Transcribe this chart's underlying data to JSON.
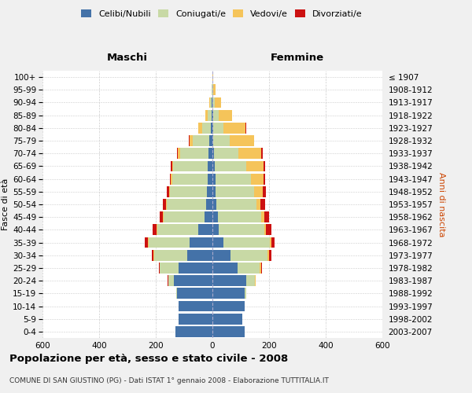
{
  "age_groups": [
    "0-4",
    "5-9",
    "10-14",
    "15-19",
    "20-24",
    "25-29",
    "30-34",
    "35-39",
    "40-44",
    "45-49",
    "50-54",
    "55-59",
    "60-64",
    "65-69",
    "70-74",
    "75-79",
    "80-84",
    "85-89",
    "90-94",
    "95-99",
    "100+"
  ],
  "birth_years": [
    "2003-2007",
    "1998-2002",
    "1993-1997",
    "1988-1992",
    "1983-1987",
    "1978-1982",
    "1973-1977",
    "1968-1972",
    "1963-1967",
    "1958-1962",
    "1953-1957",
    "1948-1952",
    "1943-1947",
    "1938-1942",
    "1933-1937",
    "1928-1932",
    "1923-1927",
    "1918-1922",
    "1913-1917",
    "1908-1912",
    "≤ 1907"
  ],
  "male": {
    "celibi": [
      130,
      120,
      120,
      125,
      135,
      120,
      90,
      80,
      50,
      28,
      22,
      20,
      18,
      18,
      15,
      10,
      5,
      4,
      2,
      0,
      0
    ],
    "coniugati": [
      0,
      0,
      0,
      2,
      20,
      65,
      115,
      145,
      145,
      145,
      140,
      130,
      125,
      120,
      100,
      60,
      30,
      12,
      5,
      2,
      0
    ],
    "vedovi": [
      0,
      0,
      0,
      0,
      0,
      0,
      2,
      2,
      2,
      2,
      3,
      3,
      5,
      5,
      8,
      10,
      15,
      10,
      5,
      2,
      0
    ],
    "divorziati": [
      0,
      0,
      0,
      0,
      2,
      5,
      8,
      12,
      15,
      12,
      10,
      8,
      3,
      3,
      2,
      2,
      0,
      0,
      0,
      0,
      0
    ]
  },
  "female": {
    "nubili": [
      115,
      105,
      115,
      115,
      120,
      90,
      65,
      38,
      22,
      20,
      15,
      12,
      10,
      8,
      5,
      3,
      2,
      2,
      0,
      0,
      0
    ],
    "coniugate": [
      0,
      0,
      0,
      5,
      30,
      78,
      130,
      165,
      162,
      152,
      140,
      135,
      125,
      112,
      88,
      58,
      38,
      20,
      8,
      2,
      0
    ],
    "vedove": [
      0,
      0,
      0,
      0,
      2,
      3,
      5,
      5,
      5,
      10,
      15,
      30,
      45,
      60,
      80,
      85,
      78,
      48,
      22,
      8,
      3
    ],
    "divorziate": [
      0,
      0,
      0,
      0,
      2,
      5,
      8,
      12,
      20,
      18,
      15,
      12,
      5,
      5,
      5,
      2,
      2,
      0,
      0,
      0,
      0
    ]
  },
  "colors": {
    "celibi_nubili": "#4472a8",
    "coniugati": "#c8d9a5",
    "vedovi": "#f5c45a",
    "divorziati": "#cc1111"
  },
  "xlim": 600,
  "title": "Popolazione per età, sesso e stato civile - 2008",
  "subtitle": "COMUNE DI SAN GIUSTINO (PG) - Dati ISTAT 1° gennaio 2008 - Elaborazione TUTTITALIA.IT",
  "ylabel_left": "Fasce di età",
  "ylabel_right": "Anni di nascita",
  "xlabel_left": "Maschi",
  "xlabel_right": "Femmine",
  "background_color": "#f0f0f0",
  "plot_background": "#ffffff",
  "grid_color": "#cccccc"
}
